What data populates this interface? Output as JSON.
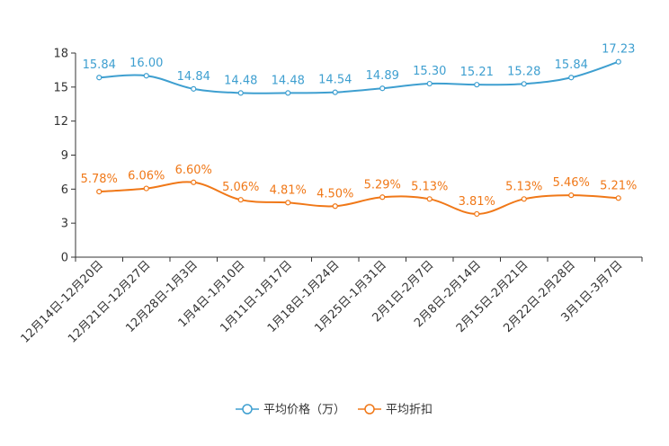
{
  "chart_data": {
    "type": "line",
    "title": "",
    "xlabel": "",
    "ylabel": "",
    "ylim": [
      0,
      18
    ],
    "yticks": [
      0,
      3,
      6,
      9,
      12,
      15,
      18
    ],
    "grid": false,
    "legend_position": "bottom",
    "categories": [
      "12月14日-12月20日",
      "12月21日-12月27日",
      "12月28日-1月3日",
      "1月4日-1月10日",
      "1月11日-1月17日",
      "1月18日-1月24日",
      "1月25日-1月31日",
      "2月1日-2月7日",
      "2月8日-2月14日",
      "2月15日-2月21日",
      "2月22日-2月28日",
      "3月1日-3月7日"
    ],
    "series": [
      {
        "name": "平均价格（万）",
        "color": "#3e9fd0",
        "values": [
          15.84,
          16.0,
          14.84,
          14.48,
          14.48,
          14.54,
          14.89,
          15.3,
          15.21,
          15.28,
          15.84,
          17.23
        ],
        "labels": [
          "15.84",
          "16.00",
          "14.84",
          "14.48",
          "14.48",
          "14.54",
          "14.89",
          "15.30",
          "15.21",
          "15.28",
          "15.84",
          "17.23"
        ]
      },
      {
        "name": "平均折扣",
        "color": "#f07818",
        "values": [
          5.78,
          6.06,
          6.6,
          5.06,
          4.81,
          4.5,
          5.29,
          5.13,
          3.81,
          5.13,
          5.46,
          5.21
        ],
        "labels": [
          "5.78%",
          "6.06%",
          "6.60%",
          "5.06%",
          "4.81%",
          "4.50%",
          "5.29%",
          "5.13%",
          "3.81%",
          "5.13%",
          "5.46%",
          "5.21%"
        ]
      }
    ]
  }
}
